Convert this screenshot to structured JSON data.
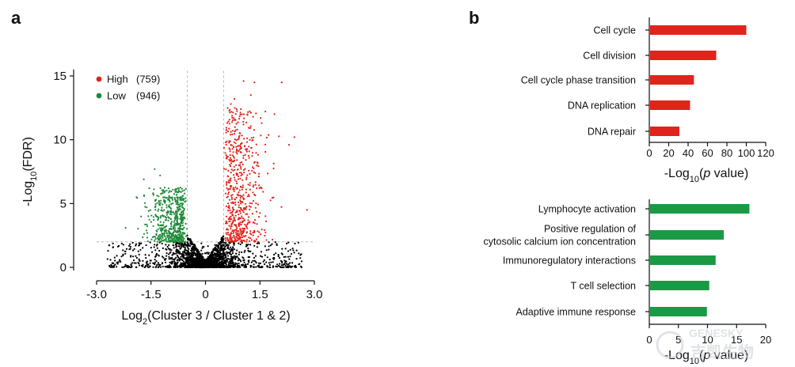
{
  "panel_labels": {
    "a": "a",
    "b": "b"
  },
  "watermark": {
    "en": "GENESKY",
    "cn": "吉凯生物"
  },
  "chart_data": [
    {
      "type": "scatter",
      "panel": "a",
      "xlabel": {
        "pre": "Log",
        "sub": "2",
        "post": "(Cluster 3 / Cluster 1 & 2)"
      },
      "ylabel": {
        "pre": "-Log",
        "sub": "10",
        "post": "(FDR)"
      },
      "xlim": [
        -3.0,
        3.0
      ],
      "ylim": [
        0,
        15.5
      ],
      "xticks": [
        -3.0,
        -1.5,
        0,
        1.5,
        3.0
      ],
      "xtick_labels": [
        "-3.0",
        "-1.5",
        "0",
        "1.5",
        "3.0"
      ],
      "yticks": [
        0,
        5,
        10,
        15
      ],
      "ytick_labels": [
        "0",
        "5",
        "10",
        "15"
      ],
      "thresholds": {
        "x": [
          -0.5,
          0.5
        ],
        "y": 2.0
      },
      "series": [
        {
          "name": "High",
          "count_label": "(759)",
          "color": "#e0241c"
        },
        {
          "name": "Low",
          "count_label": "(946)",
          "color": "#1f8a3a"
        },
        {
          "color": "#000000"
        }
      ]
    },
    {
      "type": "bar",
      "panel": "b-top",
      "orientation": "horizontal",
      "categories": [
        "Cell cycle",
        "Cell division",
        "Cell cycle phase transition",
        "DNA replication",
        "DNA repair"
      ],
      "values": [
        100,
        69,
        46,
        42,
        31
      ],
      "xlim": [
        0,
        120
      ],
      "xticks": [
        0,
        20,
        40,
        60,
        80,
        100,
        120
      ],
      "xtick_labels": [
        "0",
        "20",
        "40",
        "60",
        "80",
        "100",
        "120"
      ],
      "xlabel": {
        "pre": "-Log",
        "sub": "10",
        "mid": "(",
        "ital": "p",
        "post": " value)"
      },
      "color": "#e0241c"
    },
    {
      "type": "bar",
      "panel": "b-bottom",
      "orientation": "horizontal",
      "categories": [
        "Lymphocyte activation",
        "Positive regulation of\ncytosolic calcium ion concentration",
        "Immunoregulatory interactions",
        "T cell selection",
        "Adaptive immune response"
      ],
      "values": [
        17.2,
        12.8,
        11.4,
        10.3,
        9.9
      ],
      "xlim": [
        0,
        20
      ],
      "xticks": [
        0,
        5,
        10,
        15,
        20
      ],
      "xtick_labels": [
        "0",
        "5",
        "10",
        "15",
        "20"
      ],
      "xlabel": {
        "pre": "-Log",
        "sub": "10",
        "mid": "(",
        "ital": "p",
        "post": " value)"
      },
      "color": "#1a9a45"
    }
  ]
}
